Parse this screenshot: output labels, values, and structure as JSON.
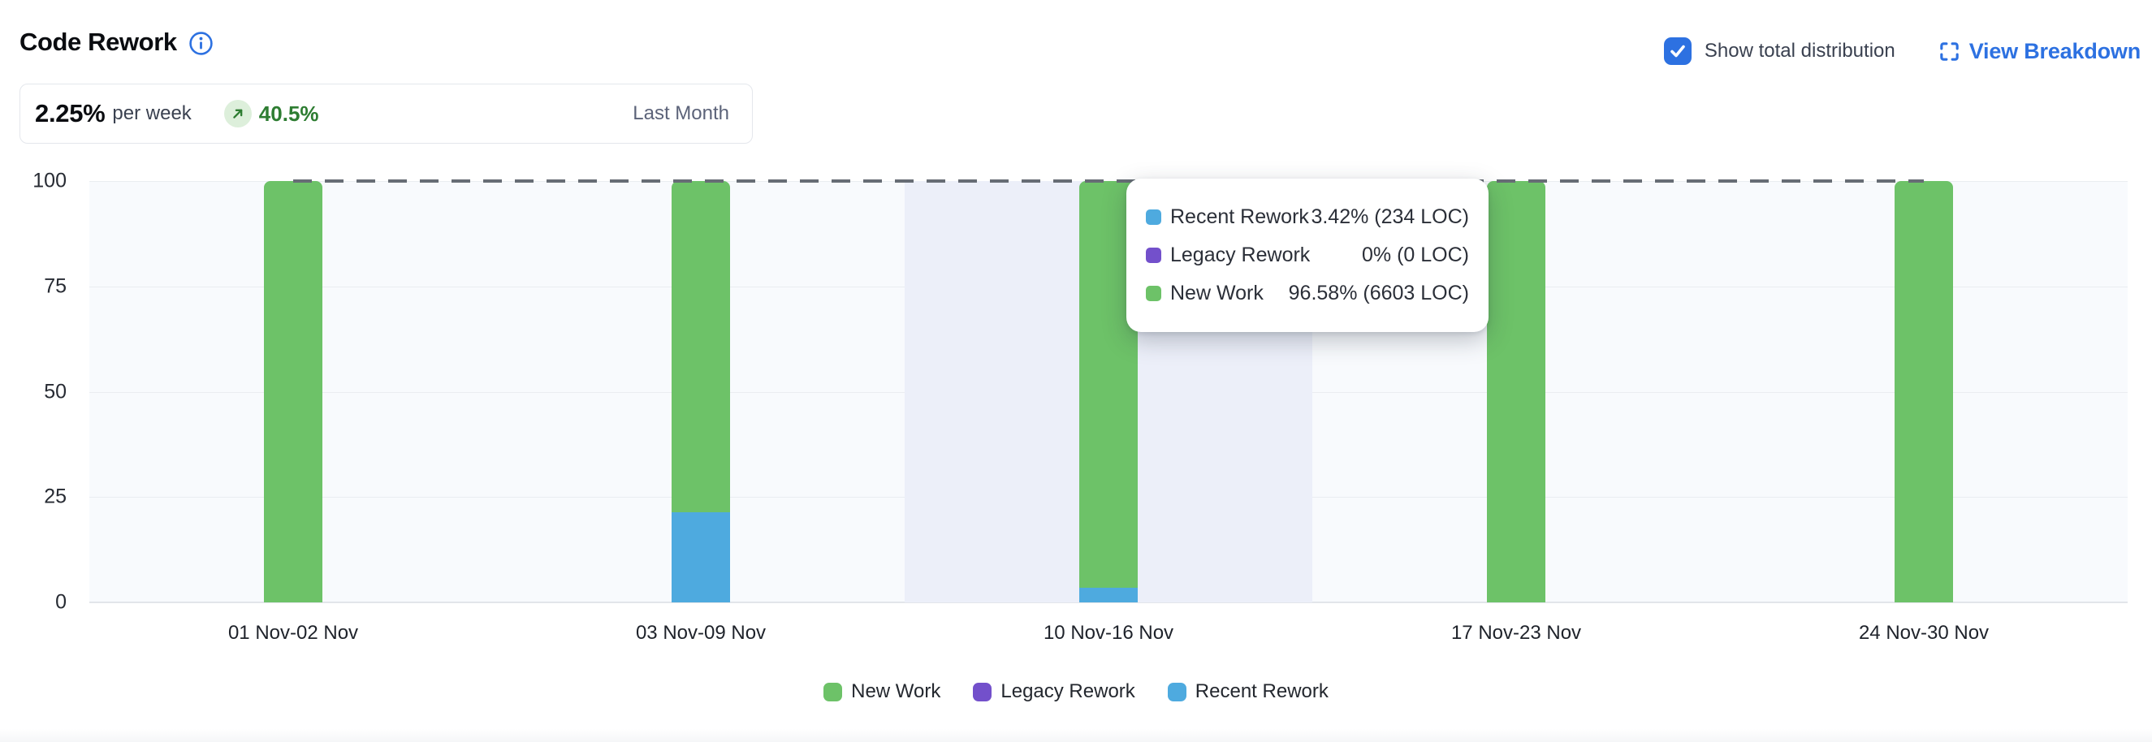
{
  "header": {
    "title": "Code Rework",
    "checkbox": {
      "label": "Show total distribution",
      "checked": true
    },
    "view_breakdown": {
      "label": "View Breakdown"
    }
  },
  "stat_card": {
    "value": "2.25%",
    "unit": "per week",
    "trend": "40.5%",
    "trend_direction": "up",
    "period": "Last Month"
  },
  "colors": {
    "accent_blue": "#2d71e1",
    "new_work": "#6dc268",
    "legacy_rework": "#7350cb",
    "recent_rework": "#4eaadf",
    "trend_green": "#2e7d32",
    "trend_badge_bg": "#ddefdb",
    "plot_bg": "#f8fafd",
    "hover_band": "#eceff9",
    "dashed_line": "#676d75"
  },
  "chart_data": {
    "type": "bar",
    "stacked": true,
    "title": "Code Rework",
    "unit": "percent",
    "categories": [
      "01 Nov-02 Nov",
      "03 Nov-09 Nov",
      "10 Nov-16 Nov",
      "17 Nov-23 Nov",
      "24 Nov-30 Nov"
    ],
    "series": [
      {
        "name": "New Work",
        "color": "#6dc268",
        "values": [
          100,
          78.6,
          96.58,
          100,
          100
        ]
      },
      {
        "name": "Legacy Rework",
        "color": "#7350cb",
        "values": [
          0,
          0,
          0,
          0,
          0
        ]
      },
      {
        "name": "Recent Rework",
        "color": "#4eaadf",
        "values": [
          0,
          21.4,
          3.42,
          0,
          0
        ]
      }
    ],
    "stack_order_bottom_to_top": [
      "Recent Rework",
      "Legacy Rework",
      "New Work"
    ],
    "ylim": [
      0,
      100
    ],
    "yticks": [
      0,
      25,
      50,
      75,
      100
    ],
    "grid": true,
    "reference_line": {
      "value": 100,
      "style": "dashed",
      "spans": "first-to-last-category-center"
    },
    "highlighted_category_index": 2,
    "legend": {
      "position": "bottom",
      "items": [
        "New Work",
        "Legacy Rework",
        "Recent Rework"
      ]
    }
  },
  "tooltip": {
    "category": "10 Nov-16 Nov",
    "rows": [
      {
        "label": "Recent Rework",
        "value": "3.42% (234 LOC)",
        "color": "#4eaadf"
      },
      {
        "label": "Legacy Rework",
        "value": "0% (0 LOC)",
        "color": "#7350cb"
      },
      {
        "label": "New Work",
        "value": "96.58% (6603 LOC)",
        "color": "#6dc268"
      }
    ]
  }
}
